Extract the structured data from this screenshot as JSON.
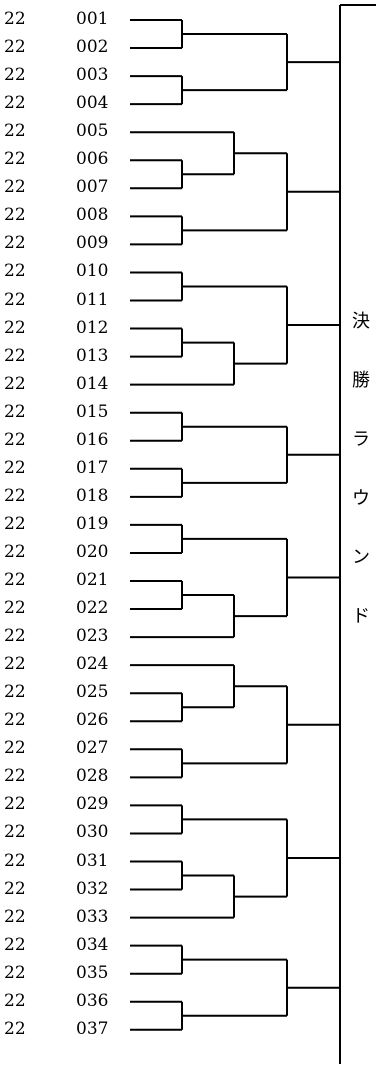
{
  "bracket": {
    "entries": [
      {
        "prefix": "22",
        "number": "001"
      },
      {
        "prefix": "22",
        "number": "002"
      },
      {
        "prefix": "22",
        "number": "003"
      },
      {
        "prefix": "22",
        "number": "004"
      },
      {
        "prefix": "22",
        "number": "005"
      },
      {
        "prefix": "22",
        "number": "006"
      },
      {
        "prefix": "22",
        "number": "007"
      },
      {
        "prefix": "22",
        "number": "008"
      },
      {
        "prefix": "22",
        "number": "009"
      },
      {
        "prefix": "22",
        "number": "010"
      },
      {
        "prefix": "22",
        "number": "011"
      },
      {
        "prefix": "22",
        "number": "012"
      },
      {
        "prefix": "22",
        "number": "013"
      },
      {
        "prefix": "22",
        "number": "014"
      },
      {
        "prefix": "22",
        "number": "015"
      },
      {
        "prefix": "22",
        "number": "016"
      },
      {
        "prefix": "22",
        "number": "017"
      },
      {
        "prefix": "22",
        "number": "018"
      },
      {
        "prefix": "22",
        "number": "019"
      },
      {
        "prefix": "22",
        "number": "020"
      },
      {
        "prefix": "22",
        "number": "021"
      },
      {
        "prefix": "22",
        "number": "022"
      },
      {
        "prefix": "22",
        "number": "023"
      },
      {
        "prefix": "22",
        "number": "024"
      },
      {
        "prefix": "22",
        "number": "025"
      },
      {
        "prefix": "22",
        "number": "026"
      },
      {
        "prefix": "22",
        "number": "027"
      },
      {
        "prefix": "22",
        "number": "028"
      },
      {
        "prefix": "22",
        "number": "029"
      },
      {
        "prefix": "22",
        "number": "030"
      },
      {
        "prefix": "22",
        "number": "031"
      },
      {
        "prefix": "22",
        "number": "032"
      },
      {
        "prefix": "22",
        "number": "033"
      },
      {
        "prefix": "22",
        "number": "034"
      },
      {
        "prefix": "22",
        "number": "035"
      },
      {
        "prefix": "22",
        "number": "036"
      },
      {
        "prefix": "22",
        "number": "037"
      }
    ],
    "structure": [
      [
        [
          1,
          2
        ],
        [
          3,
          4
        ]
      ],
      [
        [
          5,
          [
            6,
            7
          ]
        ],
        [
          8,
          9
        ]
      ],
      [
        [
          10,
          11
        ],
        [
          [
            12,
            13
          ],
          14
        ]
      ],
      [
        [
          15,
          16
        ],
        [
          17,
          18
        ]
      ],
      [
        [
          19,
          20
        ],
        [
          [
            21,
            22
          ],
          23
        ]
      ],
      [
        [
          24,
          [
            25,
            26
          ]
        ],
        [
          27,
          28
        ]
      ],
      [
        [
          29,
          30
        ],
        [
          [
            31,
            32
          ],
          33
        ]
      ],
      [
        [
          34,
          35
        ],
        [
          36,
          37
        ]
      ]
    ],
    "final_label": [
      "決",
      "勝",
      "ラ",
      "ウ",
      "ン",
      "ド"
    ]
  }
}
